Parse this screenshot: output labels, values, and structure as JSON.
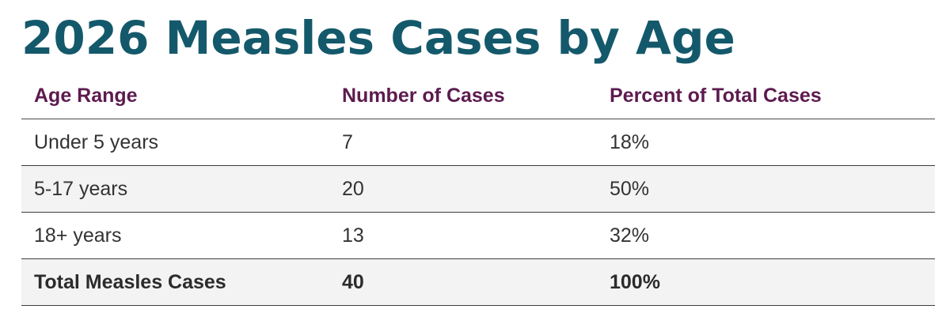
{
  "title": "2026 Measles Cases by Age",
  "table": {
    "headers": [
      "Age Range",
      "Number of Cases",
      "Percent of Total Cases"
    ],
    "rows": [
      [
        "Under 5 years",
        "7",
        "18%"
      ],
      [
        "5-17 years",
        "20",
        "50%"
      ],
      [
        "18+ years",
        "13",
        "32%"
      ]
    ],
    "total": [
      "Total Measles Cases",
      "40",
      "100%"
    ]
  },
  "colors": {
    "title": "#14596b",
    "header_text": "#5d1b4f",
    "body_text": "#333333",
    "shaded_row": "#f3f3f3",
    "rule": "#3d3d3d"
  }
}
